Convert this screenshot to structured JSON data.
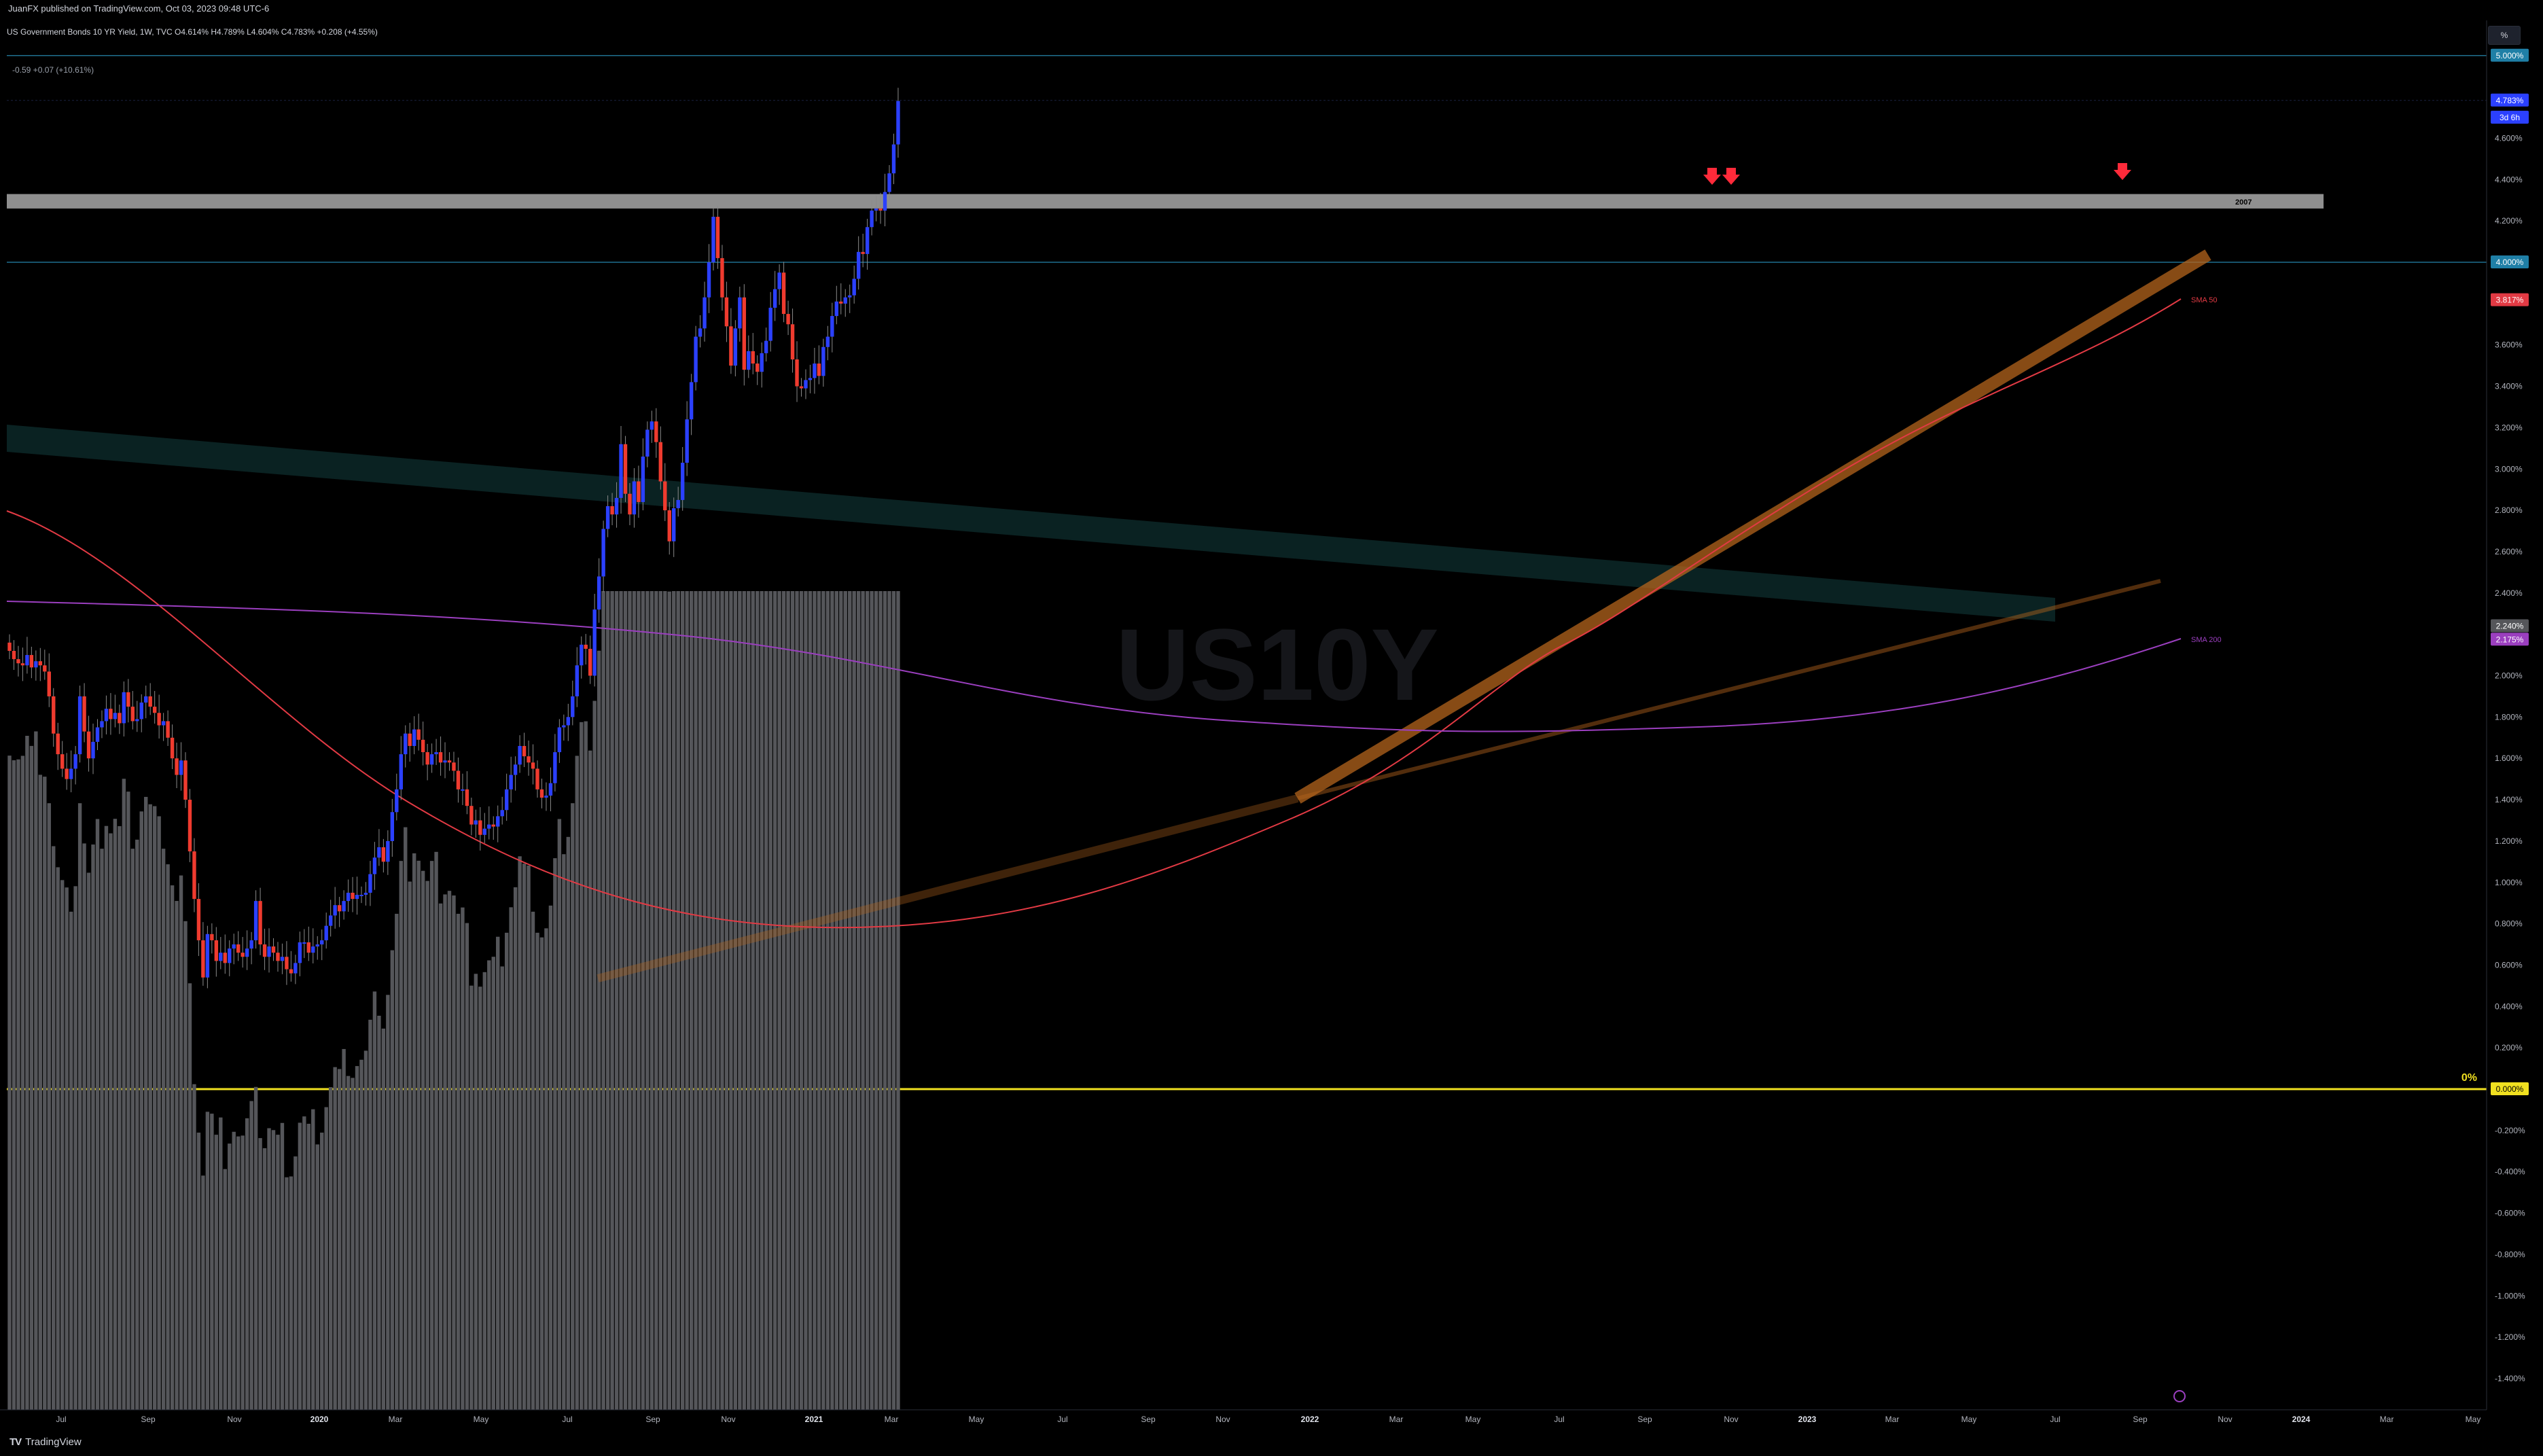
{
  "header": {
    "published_by": "JuanFX published on TradingView.com, Oct 03, 2023 09:48 UTC-6",
    "legend_title": "US Government Bonds 10 YR Yield, 1W, TVC  O4.614%  H4.789%  L4.604%  C4.783%  +0.208 (+4.55%)",
    "indicator_legend": "-0.59  +0.07 (+10.61%)",
    "percent_button": "%"
  },
  "watermark": "US10Y",
  "footer": {
    "logo_mark": "TV",
    "logo_text": "TradingView"
  },
  "colors": {
    "up": "#2b40ff",
    "down": "#ef3b2f",
    "sma50": "#e23a44",
    "sma200": "#9b3fbf",
    "volume": "#55565a",
    "zero_line": "#f0e020",
    "resistance_band": "#bfbfbf",
    "trendline": "#b5651d",
    "arrow": "#ff2a3a"
  },
  "price_axis": {
    "labels": [
      "4.600%",
      "4.400%",
      "4.200%",
      "3.600%",
      "3.400%",
      "3.200%",
      "3.000%",
      "2.800%",
      "2.600%",
      "2.400%",
      "2.000%",
      "1.800%",
      "1.600%",
      "1.400%",
      "1.200%",
      "1.000%",
      "0.800%",
      "0.600%",
      "0.400%",
      "0.200%",
      "-0.200%",
      "-0.400%",
      "-0.600%",
      "-0.800%",
      "-1.000%",
      "-1.200%",
      "-1.400%"
    ],
    "ticks": [
      4.6,
      4.4,
      4.2,
      3.6,
      3.4,
      3.2,
      3.0,
      2.8,
      2.6,
      2.4,
      2.0,
      1.8,
      1.6,
      1.4,
      1.2,
      1.0,
      0.8,
      0.6,
      0.4,
      0.2,
      -0.2,
      -0.4,
      -0.6,
      -0.8,
      -1.0,
      -1.2,
      -1.4
    ],
    "tags": [
      {
        "text": "5.000%",
        "value": 5.0,
        "color": "#1f7fa6"
      },
      {
        "text": "4.783%",
        "value": 4.783,
        "color": "#2b40ff"
      },
      {
        "text": "3d 6h",
        "value": 4.7,
        "color": "#2b40ff"
      },
      {
        "text": "4.000%",
        "value": 4.0,
        "color": "#1f7fa6"
      },
      {
        "text": "3.817%",
        "value": 3.817,
        "color": "#e23a44"
      },
      {
        "text": "2.240%",
        "value": 2.24,
        "color": "#55565a"
      },
      {
        "text": "2.175%",
        "value": 2.175,
        "color": "#9b3fbf"
      },
      {
        "text": "0.000%",
        "value": 0.0,
        "color": "#f0e020"
      }
    ]
  },
  "time_axis": {
    "labels": [
      "Jul",
      "Sep",
      "Nov",
      "2020",
      "Mar",
      "May",
      "Jul",
      "Sep",
      "Nov",
      "2021",
      "Mar",
      "May",
      "Jul",
      "Sep",
      "Nov",
      "2022",
      "Mar",
      "May",
      "Jul",
      "Sep",
      "Nov",
      "2023",
      "Mar",
      "May",
      "Jul",
      "Sep",
      "Nov",
      "2024",
      "Mar",
      "May"
    ],
    "bold": [
      "2020",
      "2021",
      "2022",
      "2023",
      "2024"
    ]
  },
  "annotations": {
    "band_label": "2007",
    "sma50_label": "SMA 50",
    "sma200_label": "SMA 200",
    "zero_label": "0%"
  },
  "chart_data": {
    "type": "candlestick",
    "title": "US Government Bonds 10 YR Yield, 1W, TVC",
    "interval": "1W",
    "y_range": [
      -1.55,
      5.3
    ],
    "x_range": [
      "2019-05",
      "2024-05"
    ],
    "close_approx": [
      2.12,
      2.08,
      2.06,
      2.05,
      2.1,
      2.04,
      2.07,
      2.05,
      2.02,
      1.9,
      1.72,
      1.62,
      1.55,
      1.5,
      1.55,
      1.62,
      1.9,
      1.73,
      1.6,
      1.68,
      1.75,
      1.78,
      1.84,
      1.79,
      1.82,
      1.77,
      1.92,
      1.85,
      1.78,
      1.79,
      1.87,
      1.9,
      1.85,
      1.82,
      1.76,
      1.78,
      1.7,
      1.6,
      1.52,
      1.59,
      1.4,
      1.15,
      0.92,
      0.72,
      0.54,
      0.75,
      0.72,
      0.62,
      0.66,
      0.61,
      0.68,
      0.7,
      0.66,
      0.64,
      0.68,
      0.72,
      0.91,
      0.7,
      0.64,
      0.69,
      0.66,
      0.62,
      0.64,
      0.58,
      0.56,
      0.61,
      0.71,
      0.71,
      0.66,
      0.69,
      0.7,
      0.72,
      0.79,
      0.84,
      0.89,
      0.86,
      0.91,
      0.95,
      0.92,
      0.94,
      0.94,
      0.95,
      1.04,
      1.12,
      1.17,
      1.1,
      1.2,
      1.34,
      1.45,
      1.62,
      1.72,
      1.66,
      1.74,
      1.69,
      1.63,
      1.57,
      1.62,
      1.63,
      1.58,
      1.59,
      1.58,
      1.54,
      1.45,
      1.45,
      1.37,
      1.28,
      1.3,
      1.23,
      1.26,
      1.28,
      1.27,
      1.32,
      1.35,
      1.45,
      1.52,
      1.57,
      1.66,
      1.61,
      1.58,
      1.55,
      1.45,
      1.41,
      1.42,
      1.48,
      1.63,
      1.75,
      1.76,
      1.8,
      1.9,
      2.05,
      2.15,
      2.13,
      2.0,
      2.32,
      2.48,
      2.71,
      2.82,
      2.78,
      2.86,
      3.12,
      2.88,
      2.78,
      2.94,
      2.84,
      3.06,
      3.19,
      3.23,
      3.13,
      2.94,
      2.8,
      2.65,
      2.81,
      2.85,
      3.03,
      3.24,
      3.42,
      3.64,
      3.68,
      3.83,
      4.0,
      4.22,
      4.02,
      3.83,
      3.69,
      3.5,
      3.68,
      3.83,
      3.48,
      3.57,
      3.51,
      3.47,
      3.56,
      3.62,
      3.78,
      3.87,
      3.95,
      3.75,
      3.7,
      3.53,
      3.4,
      3.39,
      3.43,
      3.44,
      3.51,
      3.45,
      3.59,
      3.64,
      3.74,
      3.81,
      3.8,
      3.83,
      3.84,
      3.92,
      4.05,
      4.04,
      4.17,
      4.25,
      4.26,
      4.25,
      4.34,
      4.43,
      4.57,
      4.78
    ],
    "resistance_zone": [
      4.26,
      4.33
    ],
    "horizontal_lines": [
      5.0,
      4.0,
      0.0
    ],
    "sma50_label": "SMA 50",
    "sma200_label": "SMA 200"
  }
}
